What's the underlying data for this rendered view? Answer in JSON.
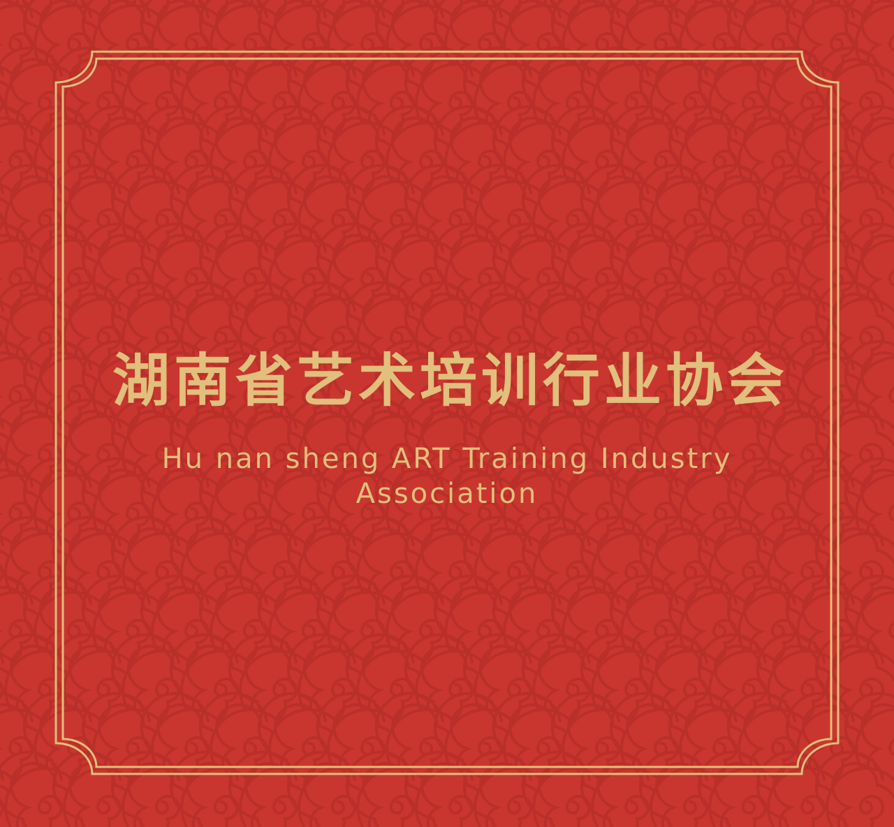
{
  "colors": {
    "background": "#c9362f",
    "pattern_line": "#bb2e28",
    "gold": "#e1bf7c"
  },
  "decor": {
    "pattern": "swirl-cloud-pattern",
    "frame": "double-gold-frame"
  },
  "title": {
    "chinese": "湖南省艺术培训行业协会",
    "english": "Hu nan sheng ART Training Industry Association"
  }
}
